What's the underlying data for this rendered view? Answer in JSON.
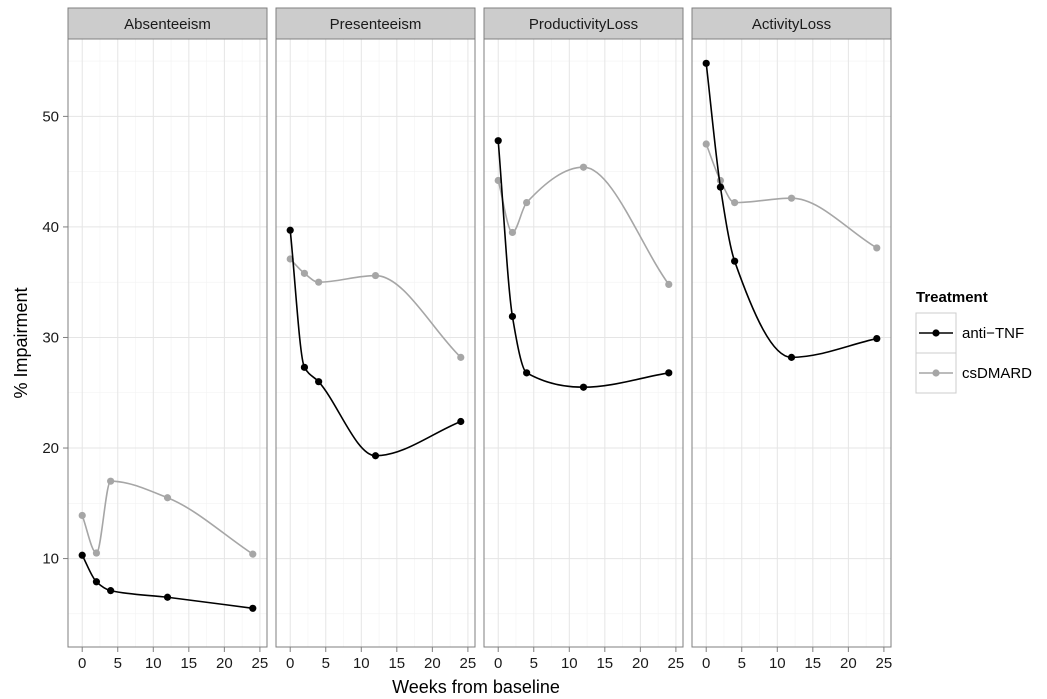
{
  "chart_data": {
    "type": "line",
    "facets": [
      "Absenteeism",
      "Presenteeism",
      "ProductivityLoss",
      "ActivityLoss"
    ],
    "xlabel": "Weeks from baseline",
    "ylabel": "% Impairment",
    "xlim": [
      -2,
      26
    ],
    "ylim": [
      2,
      57
    ],
    "x_ticks": [
      0,
      5,
      10,
      15,
      20,
      25
    ],
    "x_tick_labels": [
      "0",
      "5",
      "10",
      "15",
      "20",
      "25"
    ],
    "y_ticks": [
      10,
      20,
      30,
      40,
      50
    ],
    "y_tick_labels": [
      "10",
      "20",
      "30",
      "40",
      "50"
    ],
    "grid": true,
    "legend": {
      "title": "Treatment",
      "position": "right",
      "entries": [
        "anti−TNF",
        "csDMARD"
      ]
    },
    "series": [
      {
        "name": "anti−TNF",
        "color": "#000000",
        "x": [
          0,
          2,
          4,
          12,
          24
        ],
        "panels": {
          "Absenteeism": [
            10.3,
            7.9,
            7.1,
            6.5,
            5.5
          ],
          "Presenteeism": [
            39.7,
            27.3,
            26.0,
            19.3,
            22.4
          ],
          "ProductivityLoss": [
            47.8,
            31.9,
            26.8,
            25.5,
            26.8
          ],
          "ActivityLoss": [
            54.8,
            43.6,
            36.9,
            28.2,
            29.9
          ]
        }
      },
      {
        "name": "csDMARD",
        "color": "#a6a6a6",
        "x": [
          0,
          2,
          4,
          12,
          24
        ],
        "panels": {
          "Absenteeism": [
            13.9,
            10.5,
            17.0,
            15.5,
            10.4
          ],
          "Presenteeism": [
            37.1,
            35.8,
            35.0,
            35.6,
            28.2
          ],
          "ProductivityLoss": [
            44.2,
            39.5,
            42.2,
            45.4,
            34.8
          ],
          "ActivityLoss": [
            47.5,
            44.2,
            42.2,
            42.6,
            38.1
          ]
        }
      }
    ]
  }
}
